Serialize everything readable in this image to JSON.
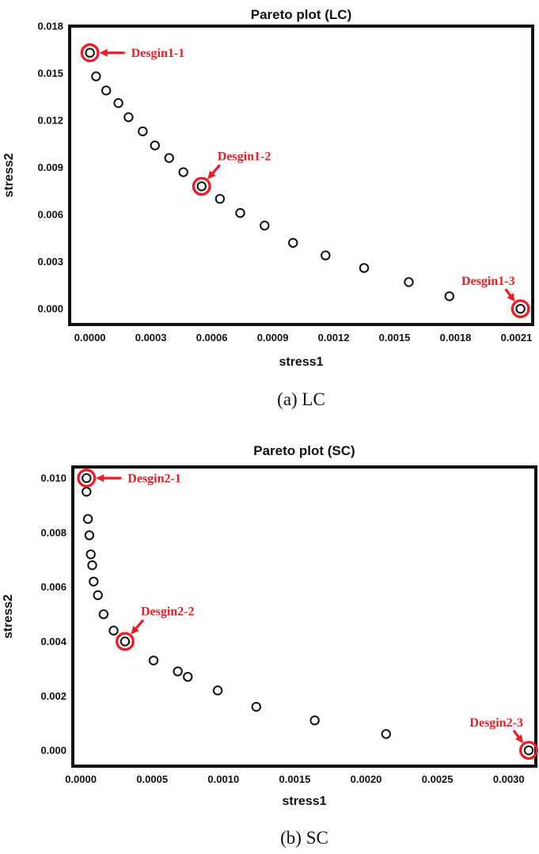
{
  "colors": {
    "ink": "#111111",
    "accent_red": "#ed1c24",
    "background": "#ffffff",
    "marker_fill": "#ffffff"
  },
  "chart_data": [
    {
      "id": "pareto-lc",
      "type": "scatter",
      "title": "Pareto plot (LC)",
      "xlabel": "stress1",
      "ylabel": "stress2",
      "caption": "(a) LC",
      "marker": "open-circle",
      "grid": false,
      "legend": "none",
      "xlim": [
        -0.0001,
        0.00218
      ],
      "ylim": [
        -0.001,
        0.018
      ],
      "xticks": [
        "0.0000",
        "0.0003",
        "0.0006",
        "0.0009",
        "0.0012",
        "0.0015",
        "0.0018",
        "0.0021"
      ],
      "yticks": [
        "0.000",
        "0.003",
        "0.006",
        "0.009",
        "0.012",
        "0.015",
        "0.018"
      ],
      "points": [
        [
          0.0,
          0.0163
        ],
        [
          3e-05,
          0.0148
        ],
        [
          8e-05,
          0.0139
        ],
        [
          0.00014,
          0.0131
        ],
        [
          0.00019,
          0.0122
        ],
        [
          0.00026,
          0.0113
        ],
        [
          0.00032,
          0.0104
        ],
        [
          0.00039,
          0.0096
        ],
        [
          0.00046,
          0.0087
        ],
        [
          0.00055,
          0.0078
        ],
        [
          0.00064,
          0.007
        ],
        [
          0.00074,
          0.0061
        ],
        [
          0.00086,
          0.0053
        ],
        [
          0.001,
          0.0042
        ],
        [
          0.00116,
          0.0034
        ],
        [
          0.00135,
          0.0026
        ],
        [
          0.00157,
          0.0017
        ],
        [
          0.00177,
          0.0008
        ],
        [
          0.00212,
          0.0
        ]
      ],
      "annotations": [
        {
          "label": "Desgin1-1",
          "x": 0.0,
          "y": 0.0163,
          "arrow": "left"
        },
        {
          "label": "Desgin1-2",
          "x": 0.00055,
          "y": 0.0078,
          "arrow": "down-left"
        },
        {
          "label": "Desgin1-3",
          "x": 0.00212,
          "y": 0.0,
          "arrow": "down-right"
        }
      ]
    },
    {
      "id": "pareto-sc",
      "type": "scatter",
      "title": "Pareto plot (SC)",
      "xlabel": "stress1",
      "ylabel": "stress2",
      "caption": "(b) SC",
      "marker": "open-circle",
      "grid": false,
      "legend": "none",
      "xlim": [
        -5.6e-05,
        0.00319
      ],
      "ylim": [
        -0.00058,
        0.01041
      ],
      "xticks": [
        "0.0000",
        "0.0005",
        "0.0010",
        "0.0015",
        "0.0020",
        "0.0025",
        "0.0030"
      ],
      "yticks": [
        "0.000",
        "0.002",
        "0.004",
        "0.006",
        "0.008",
        "0.010"
      ],
      "points": [
        [
          4e-05,
          0.01
        ],
        [
          4e-05,
          0.0095
        ],
        [
          5e-05,
          0.0085
        ],
        [
          6e-05,
          0.0079
        ],
        [
          7e-05,
          0.0072
        ],
        [
          8e-05,
          0.0068
        ],
        [
          9e-05,
          0.0062
        ],
        [
          0.00012,
          0.0057
        ],
        [
          0.00016,
          0.005
        ],
        [
          0.00023,
          0.0044
        ],
        [
          0.00031,
          0.004
        ],
        [
          0.00051,
          0.0033
        ],
        [
          0.00068,
          0.0029
        ],
        [
          0.00075,
          0.0027
        ],
        [
          0.00096,
          0.0022
        ],
        [
          0.00123,
          0.0016
        ],
        [
          0.00164,
          0.0011
        ],
        [
          0.00214,
          0.0006
        ],
        [
          0.00314,
          0.0
        ]
      ],
      "annotations": [
        {
          "label": "Desgin2-1",
          "x": 4e-05,
          "y": 0.01,
          "arrow": "left"
        },
        {
          "label": "Desgin2-2",
          "x": 0.00031,
          "y": 0.004,
          "arrow": "down-left"
        },
        {
          "label": "Desgin2-3",
          "x": 0.00314,
          "y": 0.0,
          "arrow": "down-right"
        }
      ]
    }
  ]
}
